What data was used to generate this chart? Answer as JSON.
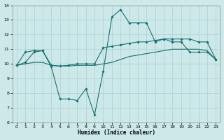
{
  "xlabel": "Humidex (Indice chaleur)",
  "xlim": [
    -0.5,
    23.5
  ],
  "ylim": [
    6,
    14
  ],
  "yticks": [
    6,
    7,
    8,
    9,
    10,
    11,
    12,
    13,
    14
  ],
  "xticks": [
    0,
    1,
    2,
    3,
    4,
    5,
    6,
    7,
    8,
    9,
    10,
    11,
    12,
    13,
    14,
    15,
    16,
    17,
    18,
    19,
    20,
    21,
    22,
    23
  ],
  "bg_color": "#cce8e8",
  "line_color": "#1a7070",
  "grid_color": "#b0d4d4",
  "line1_x": [
    0,
    1,
    2,
    3,
    4,
    5,
    6,
    7,
    8,
    9,
    10,
    11,
    12,
    13,
    14,
    15,
    16,
    17,
    18,
    19,
    20,
    21,
    22,
    23
  ],
  "line1_y": [
    9.9,
    10.1,
    10.8,
    10.9,
    9.8,
    7.6,
    7.6,
    7.5,
    8.3,
    6.5,
    9.5,
    13.2,
    13.7,
    12.8,
    12.8,
    12.8,
    11.5,
    11.7,
    11.5,
    11.5,
    10.8,
    10.8,
    10.8,
    10.3
  ],
  "line2_x": [
    0,
    1,
    2,
    3,
    4,
    5,
    6,
    7,
    8,
    9,
    10,
    11,
    12,
    13,
    14,
    15,
    16,
    17,
    18,
    19,
    20,
    21,
    22,
    23
  ],
  "line2_y": [
    9.9,
    10.8,
    10.9,
    10.9,
    9.9,
    9.85,
    9.9,
    10.0,
    10.0,
    10.0,
    11.1,
    11.2,
    11.3,
    11.4,
    11.5,
    11.5,
    11.6,
    11.7,
    11.7,
    11.7,
    11.7,
    11.5,
    11.5,
    10.3
  ],
  "line3_x": [
    0,
    1,
    2,
    3,
    4,
    5,
    6,
    7,
    8,
    9,
    10,
    11,
    12,
    13,
    14,
    15,
    16,
    17,
    18,
    19,
    20,
    21,
    22,
    23
  ],
  "line3_y": [
    9.9,
    10.0,
    10.1,
    10.1,
    9.9,
    9.85,
    9.85,
    9.9,
    9.9,
    9.9,
    10.0,
    10.1,
    10.3,
    10.5,
    10.6,
    10.7,
    10.8,
    10.9,
    11.0,
    11.0,
    11.0,
    11.0,
    10.9,
    10.3
  ]
}
